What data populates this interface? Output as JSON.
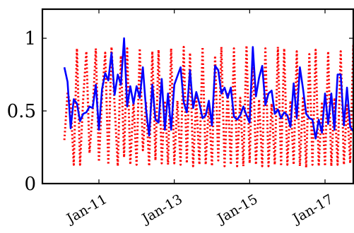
{
  "chart_data": {
    "type": "line",
    "title": "",
    "xlabel": "",
    "ylabel": "",
    "x_start": "Feb-10",
    "x_step": "1 month",
    "x_ticks": [
      "Jan-11",
      "Jan-13",
      "Jan-15",
      "Jan-17"
    ],
    "y_ticks": [
      {
        "value": 0,
        "label": "0"
      },
      {
        "value": 0.5,
        "label": "0.5"
      },
      {
        "value": 1,
        "label": "1"
      }
    ],
    "xlim": [
      "Jul-09",
      "Oct-17"
    ],
    "ylim": [
      0,
      1.2
    ],
    "grid": false,
    "legend": "none",
    "series": [
      {
        "style": "solid",
        "color": "#0000ff",
        "values": [
          0.8,
          0.7,
          0.38,
          0.58,
          0.55,
          0.43,
          0.48,
          0.49,
          0.53,
          0.52,
          0.68,
          0.37,
          0.65,
          0.76,
          0.71,
          0.9,
          0.61,
          0.75,
          0.68,
          1.0,
          0.53,
          0.67,
          0.55,
          0.67,
          0.59,
          0.8,
          0.51,
          0.33,
          0.68,
          0.44,
          0.42,
          0.72,
          0.37,
          0.62,
          0.37,
          0.68,
          0.74,
          0.8,
          0.56,
          0.49,
          0.78,
          0.52,
          0.63,
          0.55,
          0.45,
          0.47,
          0.57,
          0.4,
          0.81,
          0.78,
          0.62,
          0.66,
          0.59,
          0.66,
          0.46,
          0.44,
          0.47,
          0.53,
          0.47,
          0.42,
          0.94,
          0.6,
          0.73,
          0.81,
          0.54,
          0.62,
          0.64,
          0.48,
          0.51,
          0.45,
          0.49,
          0.47,
          0.39,
          0.69,
          0.45,
          0.8,
          0.65,
          0.48,
          0.45,
          0.44,
          0.31,
          0.44,
          0.35,
          0.62,
          0.41,
          0.62,
          0.37,
          0.75,
          0.75,
          0.4,
          0.66,
          0.39,
          0.36
        ]
      },
      {
        "style": "dotted",
        "color": "#ff0000",
        "values": [
          0.3,
          0.62,
          0.55,
          0.13,
          0.93,
          0.13,
          0.59,
          0.91,
          0.21,
          0.49,
          0.93,
          0.15,
          0.6,
          0.9,
          0.13,
          0.94,
          0.54,
          0.12,
          0.88,
          0.18,
          0.93,
          0.13,
          0.57,
          0.13,
          0.93,
          0.23,
          0.56,
          0.12,
          0.91,
          0.16,
          0.92,
          0.14,
          0.57,
          0.13,
          0.93,
          0.14,
          0.57,
          0.13,
          0.94,
          0.14,
          0.9,
          0.12,
          0.59,
          0.13,
          0.94,
          0.13,
          0.56,
          0.12,
          0.88,
          0.16,
          0.94,
          0.12,
          0.63,
          0.13,
          0.93,
          0.12,
          0.59,
          0.12,
          0.95,
          0.14,
          0.91,
          0.13,
          0.58,
          0.12,
          0.93,
          0.12,
          0.55,
          0.13,
          0.94,
          0.12,
          0.93,
          0.13,
          0.57,
          0.13,
          0.91,
          0.12,
          0.6,
          0.11,
          0.89,
          0.13,
          0.92,
          0.12,
          0.55,
          0.12,
          0.91,
          0.12,
          0.59,
          0.13,
          0.91,
          0.13,
          0.55,
          0.14,
          0.95,
          0.13
        ]
      }
    ]
  }
}
